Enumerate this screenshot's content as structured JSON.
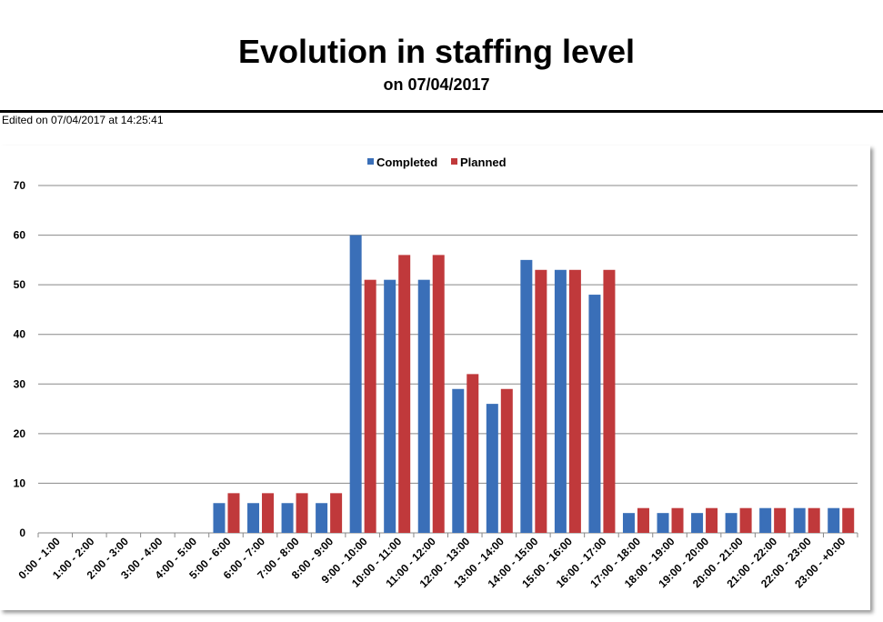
{
  "header": {
    "title": "Evolution in staffing level",
    "subtitle": "on 07/04/2017",
    "edited": "Edited on 07/04/2017 at 14:25:41"
  },
  "chart_data": {
    "type": "bar",
    "title": "",
    "xlabel": "",
    "ylabel": "",
    "ylim": [
      0,
      70
    ],
    "yticks": [
      0,
      10,
      20,
      30,
      40,
      50,
      60,
      70
    ],
    "grid": true,
    "legend_position": "top",
    "categories": [
      "0:00 - 1:00",
      "1:00 - 2:00",
      "2:00 - 3:00",
      "3:00 - 4:00",
      "4:00 - 5:00",
      "5:00 - 6:00",
      "6:00 - 7:00",
      "7:00 - 8:00",
      "8:00 - 9:00",
      "9:00 - 10:00",
      "10:00 - 11:00",
      "11:00 - 12:00",
      "12:00 - 13:00",
      "13:00 - 14:00",
      "14:00 - 15:00",
      "15:00 - 16:00",
      "16:00 - 17:00",
      "17:00 - 18:00",
      "18:00 - 19:00",
      "19:00 - 20:00",
      "20:00 - 21:00",
      "21:00 - 22:00",
      "22:00 - 23:00",
      "23:00 - +0:00"
    ],
    "series": [
      {
        "name": "Completed",
        "color": "#3a6fb8",
        "values": [
          0,
          0,
          0,
          0,
          0,
          6,
          6,
          6,
          6,
          60,
          51,
          51,
          29,
          26,
          55,
          53,
          48,
          4,
          4,
          4,
          4,
          5,
          5,
          5
        ]
      },
      {
        "name": "Planned",
        "color": "#c0393b",
        "values": [
          0,
          0,
          0,
          0,
          0,
          8,
          8,
          8,
          8,
          51,
          56,
          56,
          32,
          29,
          53,
          53,
          53,
          5,
          5,
          5,
          5,
          5,
          5,
          5
        ]
      }
    ]
  }
}
